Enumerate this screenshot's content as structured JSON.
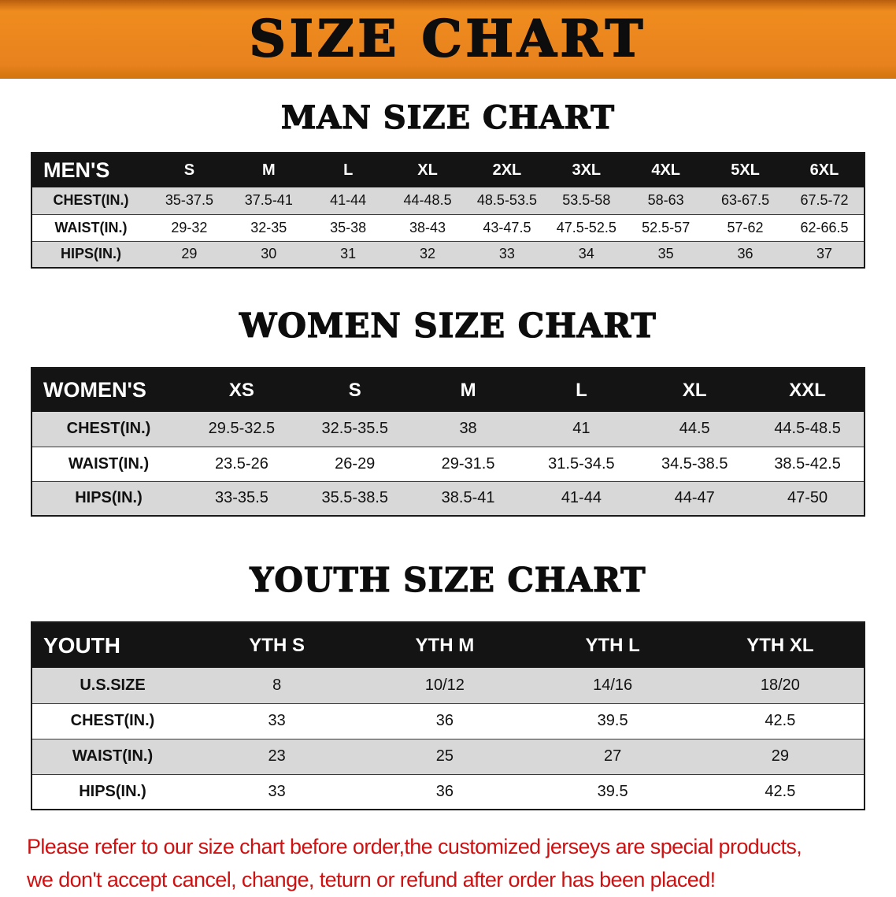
{
  "banner": {
    "title": "SIZE CHART"
  },
  "sections": [
    {
      "title": "MAN SIZE CHART",
      "header": [
        "MEN'S",
        "S",
        "M",
        "L",
        "XL",
        "2XL",
        "3XL",
        "4XL",
        "5XL",
        "6XL"
      ],
      "rows": [
        {
          "label": "CHEST(IN.)",
          "values": [
            "35-37.5",
            "37.5-41",
            "41-44",
            "44-48.5",
            "48.5-53.5",
            "53.5-58",
            "58-63",
            "63-67.5",
            "67.5-72"
          ]
        },
        {
          "label": "WAIST(IN.)",
          "values": [
            "29-32",
            "32-35",
            "35-38",
            "38-43",
            "43-47.5",
            "47.5-52.5",
            "52.5-57",
            "57-62",
            "62-66.5"
          ]
        },
        {
          "label": "HIPS(IN.)",
          "values": [
            "29",
            "30",
            "31",
            "32",
            "33",
            "34",
            "35",
            "36",
            "37"
          ]
        }
      ]
    },
    {
      "title": "WOMEN SIZE CHART",
      "header": [
        "WOMEN'S",
        "XS",
        "S",
        "M",
        "L",
        "XL",
        "XXL"
      ],
      "rows": [
        {
          "label": "CHEST(IN.)",
          "values": [
            "29.5-32.5",
            "32.5-35.5",
            "38",
            "41",
            "44.5",
            "44.5-48.5"
          ]
        },
        {
          "label": "WAIST(IN.)",
          "values": [
            "23.5-26",
            "26-29",
            "29-31.5",
            "31.5-34.5",
            "34.5-38.5",
            "38.5-42.5"
          ]
        },
        {
          "label": "HIPS(IN.)",
          "values": [
            "33-35.5",
            "35.5-38.5",
            "38.5-41",
            "41-44",
            "44-47",
            "47-50"
          ]
        }
      ]
    },
    {
      "title": "YOUTH SIZE CHART",
      "header": [
        "YOUTH",
        "YTH S",
        "YTH M",
        "YTH L",
        "YTH XL"
      ],
      "rows": [
        {
          "label": "U.S.SIZE",
          "values": [
            "8",
            "10/12",
            "14/16",
            "18/20"
          ]
        },
        {
          "label": "CHEST(IN.)",
          "values": [
            "33",
            "36",
            "39.5",
            "42.5"
          ]
        },
        {
          "label": "WAIST(IN.)",
          "values": [
            "23",
            "25",
            "27",
            "29"
          ]
        },
        {
          "label": "HIPS(IN.)",
          "values": [
            "33",
            "36",
            "39.5",
            "42.5"
          ]
        }
      ]
    }
  ],
  "disclaimer": {
    "line1": "Please refer to our size chart before order,the customized jerseys are special products,",
    "line2": "we don't accept cancel, change, teturn or refund after order has been placed!"
  },
  "colors": {
    "banner_bg": "#e8821e",
    "table_header_bg": "#141414",
    "row_stripe": "#d8d8d8",
    "disclaimer_red": "#cc1212"
  }
}
